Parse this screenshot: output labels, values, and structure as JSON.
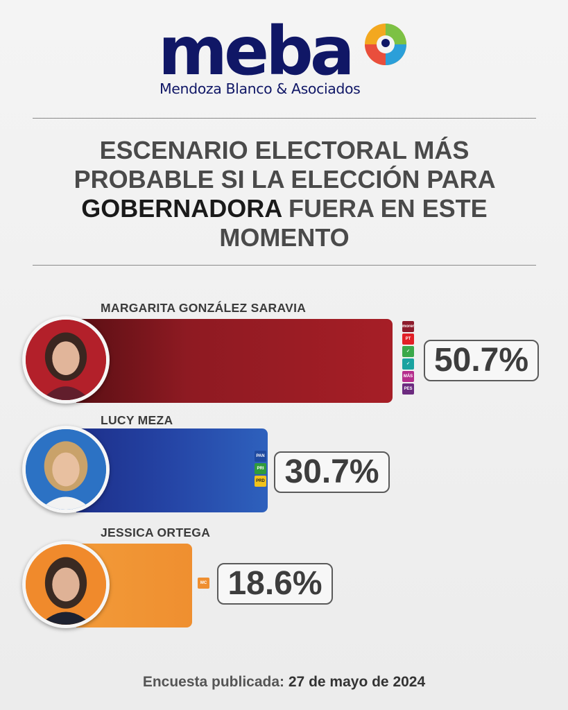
{
  "logo": {
    "wordmark": "meba",
    "subtitle": "Mendoza Blanco & Asociados"
  },
  "headline": {
    "part1": "ESCENARIO ELECTORAL MÁS PROBABLE SI LA ELECCIÓN PARA",
    "emphasis": "GOBERNADORA",
    "part2": "FUERA EN ESTE MOMENTO"
  },
  "chart_data": {
    "type": "bar",
    "orientation": "horizontal",
    "categories": [
      "MARGARITA GONZÁLEZ SARAVIA",
      "LUCY MEZA",
      "JESSICA ORTEGA"
    ],
    "values": [
      50.7,
      30.7,
      18.6
    ],
    "value_labels": [
      "50.7%",
      "30.7%",
      "18.6%"
    ],
    "colors": [
      "#a61e26",
      "#2a4fae",
      "#ef8f30"
    ],
    "party_logos": [
      [
        "morena",
        "PT",
        "verde",
        "alianza",
        "MAS",
        "PES"
      ],
      [
        "PAN",
        "PRI",
        "PRD"
      ],
      [
        "MC"
      ]
    ]
  },
  "footer": {
    "label": "Encuesta publicada:",
    "date": "27 de mayo de 2024"
  }
}
